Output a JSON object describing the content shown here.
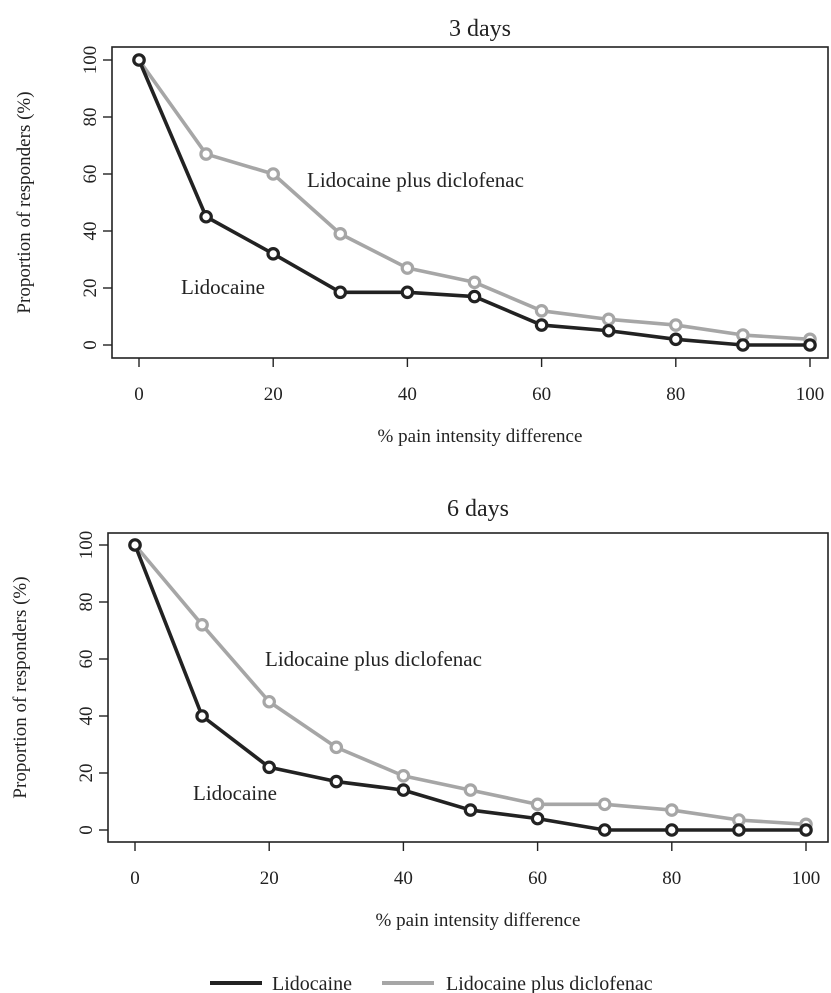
{
  "chart_data": [
    {
      "type": "line",
      "title": "3 days",
      "xlabel": "% pain intensity difference",
      "ylabel": "Proportion of responders (%)",
      "xlim": [
        0,
        100
      ],
      "ylim": [
        0,
        100
      ],
      "xticks": [
        "0",
        "20",
        "40",
        "60",
        "80",
        "100"
      ],
      "yticks": [
        "0",
        "20",
        "40",
        "60",
        "80",
        "100"
      ],
      "grid": false,
      "x": [
        0,
        10,
        20,
        30,
        40,
        50,
        60,
        70,
        80,
        90,
        100
      ],
      "series": [
        {
          "name": "Lidocaine",
          "color": "#222222",
          "values": [
            100,
            45,
            32,
            18.5,
            18.5,
            17,
            7,
            5,
            2,
            0,
            0
          ]
        },
        {
          "name": "Lidocaine plus diclofenac",
          "color": "#a6a6a6",
          "values": [
            100,
            67,
            60,
            39,
            27,
            22,
            12,
            9,
            7,
            3.5,
            2
          ]
        }
      ],
      "annotations": [
        {
          "text": "Lidocaine plus diclofenac",
          "series": 1
        },
        {
          "text": "Lidocaine",
          "series": 0
        }
      ]
    },
    {
      "type": "line",
      "title": "6 days",
      "xlabel": "% pain intensity difference",
      "ylabel": "Proportion of responders (%)",
      "xlim": [
        0,
        100
      ],
      "ylim": [
        0,
        100
      ],
      "xticks": [
        "0",
        "20",
        "40",
        "60",
        "80",
        "100"
      ],
      "yticks": [
        "0",
        "20",
        "40",
        "60",
        "80",
        "100"
      ],
      "grid": false,
      "x": [
        0,
        10,
        20,
        30,
        40,
        50,
        60,
        70,
        80,
        90,
        100
      ],
      "series": [
        {
          "name": "Lidocaine",
          "color": "#222222",
          "values": [
            100,
            40,
            22,
            17,
            14,
            7,
            4,
            0,
            0,
            0,
            0
          ]
        },
        {
          "name": "Lidocaine plus diclofenac",
          "color": "#a6a6a6",
          "values": [
            100,
            72,
            45,
            29,
            19,
            14,
            9,
            9,
            7,
            3.5,
            2
          ]
        }
      ],
      "annotations": [
        {
          "text": "Lidocaine plus diclofenac",
          "series": 1
        },
        {
          "text": "Lidocaine",
          "series": 0
        }
      ]
    }
  ],
  "legend": {
    "position": "bottom-center",
    "items": [
      {
        "label": "Lidocaine",
        "color": "#222222"
      },
      {
        "label": "Lidocaine plus diclofenac",
        "color": "#a6a6a6"
      }
    ]
  }
}
